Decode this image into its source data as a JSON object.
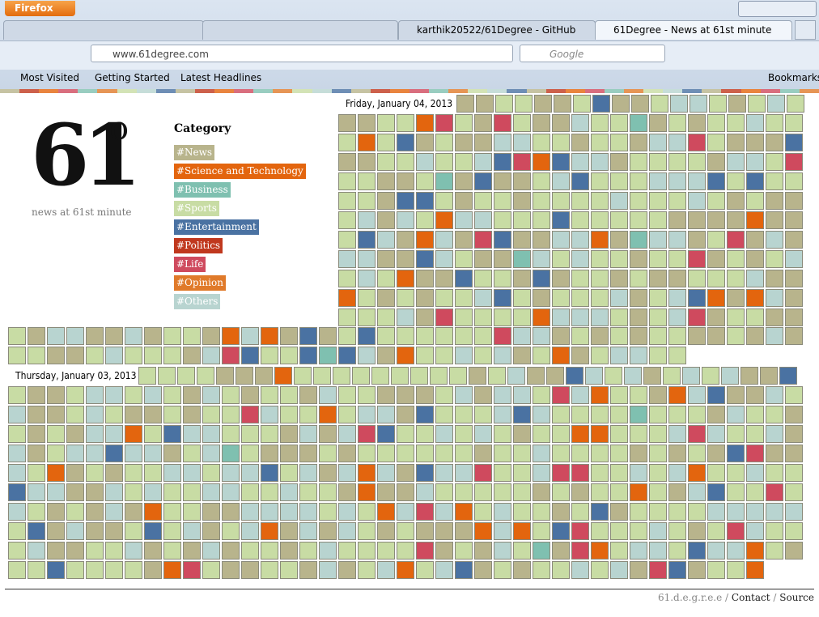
{
  "browser": {
    "firefox_button": "Firefox",
    "tabs": [
      "karthik20522/61Degree - GitHub",
      "61Degree - News at 61st minute"
    ],
    "url": "www.61degree.com",
    "search_placeholder": "Google",
    "bookmarks": [
      "Most Visited",
      "Getting Started",
      "Latest Headlines"
    ],
    "bookmarks_menu": "Bookmarks"
  },
  "page": {
    "logo": {
      "number": "61",
      "degree": "o"
    },
    "tagline": "news at 61st minute",
    "category_heading": "Category",
    "categories": [
      {
        "label": "#News",
        "color": "#b8b48c"
      },
      {
        "label": "#Science and Technology",
        "color": "#e3650e"
      },
      {
        "label": "#Business",
        "color": "#7fc0b0"
      },
      {
        "label": "#Sports",
        "color": "#c8dca4"
      },
      {
        "label": "#Entertainment",
        "color": "#4a72a2"
      },
      {
        "label": "#Politics",
        "color": "#c0381e"
      },
      {
        "label": "#Life",
        "color": "#cf4a5e"
      },
      {
        "label": "#Opinion",
        "color": "#e07a2a"
      },
      {
        "label": "#Others",
        "color": "#b8d4d0"
      }
    ],
    "days": [
      "Friday, January 04, 2013",
      "Thursday, January 03, 2013"
    ],
    "footer": {
      "site": "61.d.e.g.r.e.e /",
      "contact": "Contact",
      "separator": "/",
      "source": "Source"
    }
  }
}
